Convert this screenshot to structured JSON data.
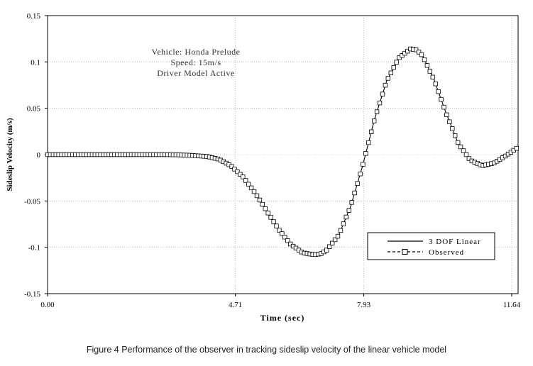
{
  "chart_data": {
    "type": "line",
    "xlabel": "Time (sec)",
    "ylabel": "Sideslip Velocity (m/s)",
    "xlim": [
      0.0,
      11.8
    ],
    "ylim": [
      -0.15,
      0.15
    ],
    "x_ticks": [
      0.0,
      4.71,
      7.93,
      11.64
    ],
    "x_tick_labels": [
      "0.00",
      "4.71",
      "7.93",
      "11.64"
    ],
    "y_ticks": [
      -0.15,
      -0.1,
      -0.05,
      0,
      0.05,
      0.1,
      0.15
    ],
    "y_tick_labels": [
      "-0.15",
      "-0.1",
      "-0.05",
      "0",
      "0.05",
      "0.1",
      "0.15"
    ],
    "grid": true,
    "annotation": [
      "Vehicle: Honda Prelude",
      "Speed: 15m/s",
      "Driver Model Active"
    ],
    "legend_position": "bottom-right",
    "series": [
      {
        "name": "3 DOF Linear",
        "style": "solid",
        "color": "#000000",
        "x": [
          0.0,
          1.0,
          2.0,
          3.0,
          3.5,
          4.0,
          4.3,
          4.6,
          4.9,
          5.2,
          5.5,
          5.8,
          6.1,
          6.4,
          6.7,
          6.85,
          7.0,
          7.3,
          7.6,
          7.9,
          8.2,
          8.5,
          8.8,
          9.1,
          9.25,
          9.4,
          9.7,
          10.0,
          10.3,
          10.6,
          10.9,
          11.2,
          11.5,
          11.8
        ],
        "values": [
          0.0,
          0.0,
          0.0,
          0.0,
          -0.0005,
          -0.002,
          -0.005,
          -0.012,
          -0.024,
          -0.041,
          -0.061,
          -0.081,
          -0.097,
          -0.106,
          -0.108,
          -0.107,
          -0.103,
          -0.087,
          -0.056,
          -0.012,
          0.038,
          0.079,
          0.104,
          0.114,
          0.113,
          0.107,
          0.08,
          0.044,
          0.012,
          -0.006,
          -0.012,
          -0.009,
          -0.001,
          0.008
        ]
      },
      {
        "name": "Observed",
        "style": "dashed-square-markers",
        "color": "#000000",
        "x": [
          0.0,
          1.0,
          2.0,
          3.0,
          3.5,
          4.0,
          4.3,
          4.6,
          4.9,
          5.2,
          5.5,
          5.8,
          6.1,
          6.4,
          6.7,
          6.85,
          7.0,
          7.3,
          7.6,
          7.9,
          8.2,
          8.5,
          8.8,
          9.1,
          9.25,
          9.4,
          9.7,
          10.0,
          10.3,
          10.6,
          10.9,
          11.2,
          11.5,
          11.8
        ],
        "values": [
          0.0,
          0.0,
          0.0,
          0.0,
          -0.0005,
          -0.002,
          -0.005,
          -0.012,
          -0.024,
          -0.041,
          -0.061,
          -0.081,
          -0.097,
          -0.106,
          -0.108,
          -0.107,
          -0.103,
          -0.087,
          -0.056,
          -0.012,
          0.038,
          0.079,
          0.104,
          0.114,
          0.113,
          0.107,
          0.08,
          0.044,
          0.012,
          -0.006,
          -0.012,
          -0.009,
          -0.001,
          0.008
        ]
      }
    ]
  },
  "caption": "Figure 4  Performance of the observer in tracking sideslip velocity of the linear vehicle model"
}
